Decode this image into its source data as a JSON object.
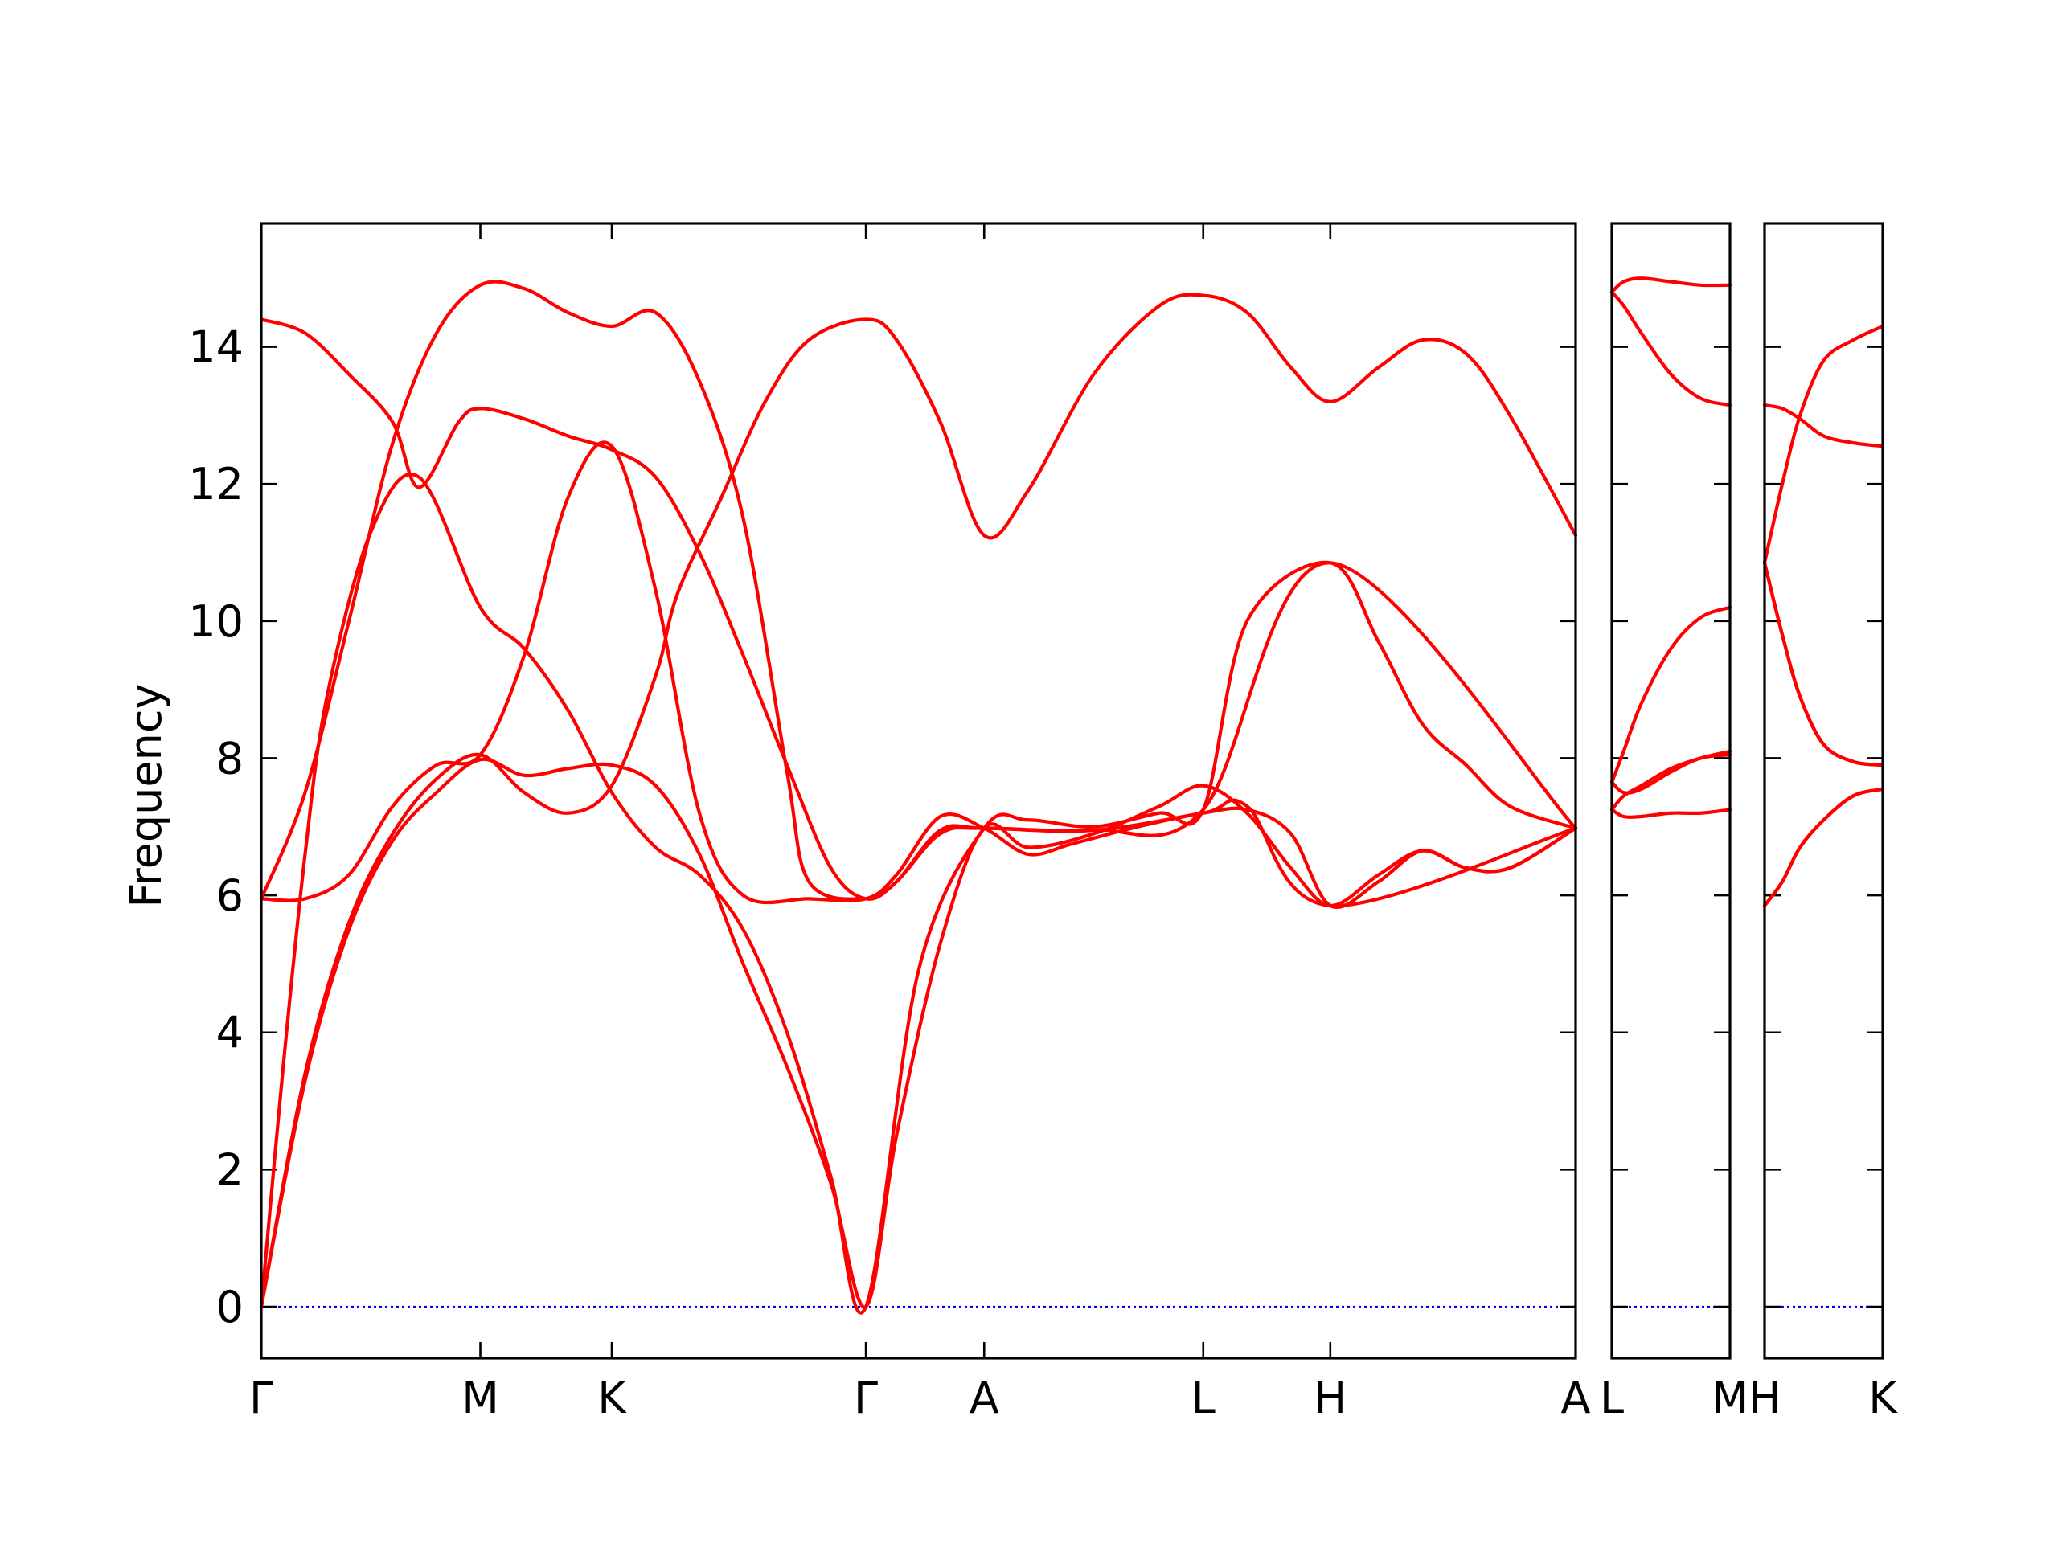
{
  "chart_data": {
    "type": "line",
    "ylabel": "Frequency",
    "ylim": [
      -0.75,
      15.8
    ],
    "yticks": [
      "0",
      "2",
      "4",
      "6",
      "8",
      "10",
      "12",
      "14"
    ],
    "band_color": "#ff0000",
    "zero_line_color": "#0000ff",
    "panels": [
      {
        "path": [
          "Γ",
          "M",
          "K",
          "Γ",
          "A",
          "L",
          "H",
          "A"
        ],
        "x_ticks": [
          0,
          0.5,
          0.8,
          1.38,
          1.65,
          2.15,
          2.44,
          3.0
        ],
        "x_labels": [
          "Γ",
          "M",
          "K",
          "Γ",
          "A",
          "L",
          "H",
          "A"
        ],
        "bands": [
          [
            [
              0,
              0
            ],
            [
              0.1,
              3.4
            ],
            [
              0.2,
              5.6
            ],
            [
              0.3,
              6.9
            ],
            [
              0.4,
              7.7
            ],
            [
              0.5,
              8.05
            ],
            [
              0.6,
              7.5
            ],
            [
              0.7,
              7.2
            ],
            [
              0.8,
              7.6
            ],
            [
              0.9,
              9.2
            ],
            [
              0.95,
              10.4
            ],
            [
              1.05,
              11.8
            ],
            [
              1.15,
              13.2
            ],
            [
              1.25,
              14.1
            ],
            [
              1.38,
              14.4
            ],
            [
              1.45,
              14.1
            ],
            [
              1.55,
              12.9
            ],
            [
              1.65,
              11.25
            ],
            [
              1.75,
              11.9
            ],
            [
              1.9,
              13.6
            ],
            [
              2.05,
              14.6
            ],
            [
              2.15,
              14.75
            ],
            [
              2.25,
              14.5
            ],
            [
              2.35,
              13.7
            ],
            [
              2.44,
              13.2
            ],
            [
              2.55,
              13.7
            ],
            [
              2.65,
              14.1
            ],
            [
              2.75,
              13.9
            ],
            [
              2.85,
              13.0
            ],
            [
              3.0,
              11.25
            ]
          ],
          [
            [
              0,
              0
            ],
            [
              0.1,
              3.3
            ],
            [
              0.2,
              5.5
            ],
            [
              0.3,
              6.8
            ],
            [
              0.4,
              7.5
            ],
            [
              0.5,
              7.98
            ],
            [
              0.6,
              7.75
            ],
            [
              0.7,
              7.85
            ],
            [
              0.8,
              7.9
            ],
            [
              0.9,
              7.6
            ],
            [
              1.0,
              6.6
            ],
            [
              1.1,
              5.0
            ],
            [
              1.2,
              3.5
            ],
            [
              1.3,
              1.8
            ],
            [
              1.38,
              0
            ],
            [
              1.45,
              2.5
            ],
            [
              1.55,
              5.3
            ],
            [
              1.65,
              6.98
            ],
            [
              1.75,
              6.7
            ],
            [
              1.9,
              6.9
            ],
            [
              2.05,
              7.3
            ],
            [
              2.15,
              7.6
            ],
            [
              2.25,
              7.2
            ],
            [
              2.35,
              6.4
            ],
            [
              2.44,
              5.85
            ],
            [
              2.55,
              6.3
            ],
            [
              2.65,
              6.65
            ],
            [
              2.75,
              6.4
            ],
            [
              2.85,
              6.4
            ],
            [
              3.0,
              6.98
            ]
          ],
          [
            [
              0,
              0
            ],
            [
              0.05,
              3.5
            ],
            [
              0.1,
              6.6
            ],
            [
              0.15,
              8.9
            ],
            [
              0.25,
              11.3
            ],
            [
              0.36,
              12.1
            ],
            [
              0.5,
              10.2
            ],
            [
              0.6,
              9.6
            ],
            [
              0.7,
              8.7
            ],
            [
              0.8,
              7.5
            ],
            [
              0.9,
              6.7
            ],
            [
              1.0,
              6.3
            ],
            [
              1.1,
              5.5
            ],
            [
              1.2,
              4.0
            ],
            [
              1.3,
              1.9
            ],
            [
              1.38,
              0
            ],
            [
              1.5,
              4.9
            ],
            [
              1.65,
              6.98
            ],
            [
              1.75,
              7.1
            ],
            [
              1.9,
              7.0
            ],
            [
              2.05,
              7.2
            ],
            [
              2.15,
              7.25
            ],
            [
              2.25,
              10.0
            ],
            [
              2.44,
              10.85
            ],
            [
              2.55,
              9.7
            ],
            [
              2.65,
              8.5
            ],
            [
              2.75,
              7.9
            ],
            [
              2.85,
              7.3
            ],
            [
              3.0,
              6.98
            ]
          ],
          [
            [
              0,
              5.95
            ],
            [
              0.1,
              5.95
            ],
            [
              0.2,
              6.3
            ],
            [
              0.3,
              7.3
            ],
            [
              0.4,
              7.9
            ],
            [
              0.5,
              8.05
            ],
            [
              0.6,
              9.5
            ],
            [
              0.7,
              11.8
            ],
            [
              0.8,
              12.55
            ],
            [
              0.9,
              10.45
            ],
            [
              1.0,
              7.2
            ],
            [
              1.1,
              6.0
            ],
            [
              1.25,
              5.95
            ],
            [
              1.38,
              5.95
            ],
            [
              1.45,
              6.3
            ],
            [
              1.55,
              7.15
            ],
            [
              1.65,
              6.98
            ],
            [
              1.75,
              6.6
            ],
            [
              1.85,
              6.75
            ],
            [
              2.0,
              7.0
            ],
            [
              2.15,
              7.2
            ],
            [
              2.25,
              7.25
            ],
            [
              2.35,
              6.9
            ],
            [
              2.44,
              5.85
            ],
            [
              2.55,
              6.2
            ],
            [
              2.65,
              6.65
            ],
            [
              2.75,
              6.4
            ],
            [
              2.85,
              6.4
            ],
            [
              3.0,
              6.98
            ]
          ],
          [
            [
              0,
              5.95
            ],
            [
              0.1,
              7.5
            ],
            [
              0.2,
              10.0
            ],
            [
              0.3,
              12.6
            ],
            [
              0.4,
              14.2
            ],
            [
              0.5,
              14.9
            ],
            [
              0.6,
              14.85
            ],
            [
              0.7,
              14.5
            ],
            [
              0.8,
              14.3
            ],
            [
              0.9,
              14.5
            ],
            [
              1.0,
              13.5
            ],
            [
              1.1,
              11.5
            ],
            [
              1.2,
              7.8
            ],
            [
              1.25,
              6.2
            ],
            [
              1.38,
              5.95
            ],
            [
              1.45,
              6.2
            ],
            [
              1.55,
              6.9
            ],
            [
              1.65,
              6.98
            ],
            [
              1.9,
              6.95
            ],
            [
              2.15,
              7.2
            ],
            [
              2.25,
              7.3
            ],
            [
              2.44,
              5.85
            ],
            [
              3.0,
              6.98
            ]
          ],
          [
            [
              0,
              14.4
            ],
            [
              0.1,
              14.2
            ],
            [
              0.2,
              13.6
            ],
            [
              0.3,
              12.9
            ],
            [
              0.36,
              11.95
            ],
            [
              0.45,
              12.9
            ],
            [
              0.5,
              13.1
            ],
            [
              0.6,
              12.95
            ],
            [
              0.7,
              12.7
            ],
            [
              0.8,
              12.5
            ],
            [
              0.9,
              12.1
            ],
            [
              1.0,
              11.0
            ],
            [
              1.1,
              9.5
            ],
            [
              1.2,
              7.9
            ],
            [
              1.3,
              6.4
            ],
            [
              1.38,
              5.95
            ],
            [
              1.45,
              6.2
            ],
            [
              1.55,
              6.95
            ],
            [
              1.65,
              6.98
            ],
            [
              1.9,
              6.95
            ],
            [
              2.15,
              7.25
            ],
            [
              2.44,
              10.85
            ],
            [
              3.0,
              6.98
            ]
          ]
        ]
      },
      {
        "path": [
          "L",
          "M"
        ],
        "x_ticks": [
          0,
          1
        ],
        "x_labels": [
          "L",
          "M"
        ],
        "bands": [
          [
            [
              0,
              14.8
            ],
            [
              0.1,
              14.95
            ],
            [
              0.25,
              15.0
            ],
            [
              0.5,
              14.95
            ],
            [
              0.75,
              14.9
            ],
            [
              1.0,
              14.9
            ]
          ],
          [
            [
              0,
              14.8
            ],
            [
              0.1,
              14.6
            ],
            [
              0.25,
              14.2
            ],
            [
              0.5,
              13.6
            ],
            [
              0.75,
              13.25
            ],
            [
              1.0,
              13.15
            ]
          ],
          [
            [
              0,
              7.65
            ],
            [
              0.1,
              8.1
            ],
            [
              0.25,
              8.8
            ],
            [
              0.5,
              9.6
            ],
            [
              0.75,
              10.05
            ],
            [
              1.0,
              10.2
            ]
          ],
          [
            [
              0,
              7.65
            ],
            [
              0.1,
              7.5
            ],
            [
              0.25,
              7.55
            ],
            [
              0.5,
              7.8
            ],
            [
              0.75,
              8.0
            ],
            [
              1.0,
              8.05
            ]
          ],
          [
            [
              0,
              7.25
            ],
            [
              0.1,
              7.45
            ],
            [
              0.25,
              7.6
            ],
            [
              0.5,
              7.85
            ],
            [
              0.75,
              8.0
            ],
            [
              1.0,
              8.1
            ]
          ],
          [
            [
              0,
              7.25
            ],
            [
              0.1,
              7.15
            ],
            [
              0.25,
              7.15
            ],
            [
              0.5,
              7.2
            ],
            [
              0.75,
              7.2
            ],
            [
              1.0,
              7.25
            ]
          ]
        ]
      },
      {
        "path": [
          "H",
          "K"
        ],
        "x_ticks": [
          0,
          1
        ],
        "x_labels": [
          "H",
          "K"
        ],
        "bands": [
          [
            [
              0,
              10.85
            ],
            [
              0.15,
              12.0
            ],
            [
              0.3,
              13.0
            ],
            [
              0.5,
              13.8
            ],
            [
              0.75,
              14.1
            ],
            [
              1.0,
              14.3
            ]
          ],
          [
            [
              0,
              13.15
            ],
            [
              0.15,
              13.1
            ],
            [
              0.3,
              12.95
            ],
            [
              0.5,
              12.7
            ],
            [
              0.75,
              12.6
            ],
            [
              1.0,
              12.55
            ]
          ],
          [
            [
              0,
              10.85
            ],
            [
              0.15,
              9.8
            ],
            [
              0.3,
              8.9
            ],
            [
              0.5,
              8.2
            ],
            [
              0.75,
              7.95
            ],
            [
              1.0,
              7.9
            ]
          ],
          [
            [
              0,
              10.85
            ],
            [
              0.15,
              9.8
            ],
            [
              0.3,
              8.9
            ],
            [
              0.5,
              8.2
            ],
            [
              0.75,
              7.95
            ],
            [
              1.0,
              7.9
            ]
          ],
          [
            [
              0,
              5.85
            ],
            [
              0.15,
              6.2
            ],
            [
              0.3,
              6.7
            ],
            [
              0.5,
              7.1
            ],
            [
              0.75,
              7.45
            ],
            [
              1.0,
              7.55
            ]
          ],
          [
            [
              0,
              5.85
            ],
            [
              0.15,
              6.2
            ],
            [
              0.3,
              6.7
            ],
            [
              0.5,
              7.1
            ],
            [
              0.75,
              7.45
            ],
            [
              1.0,
              7.55
            ]
          ]
        ]
      }
    ]
  }
}
